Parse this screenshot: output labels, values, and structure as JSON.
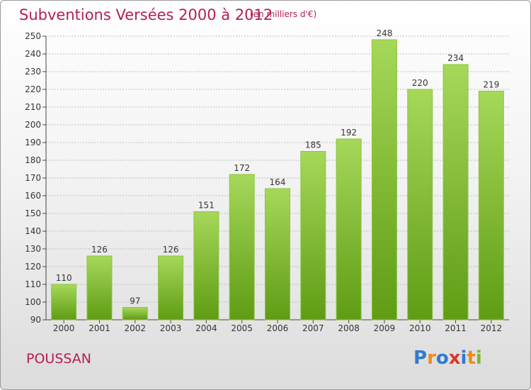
{
  "title": "Subventions Versées 2000 à 2012",
  "unit_note": "(en milliers d'€)",
  "town": "POUSSAN",
  "logo": {
    "text": "Proxiti",
    "letters": [
      {
        "ch": "P",
        "color": "#2e7bd1"
      },
      {
        "ch": "r",
        "color": "#f28a1c"
      },
      {
        "ch": "o",
        "color": "#2e7bd1"
      },
      {
        "ch": "x",
        "color": "#d8392b"
      },
      {
        "ch": "i",
        "color": "#2e7bd1"
      },
      {
        "ch": "t",
        "color": "#f28a1c"
      },
      {
        "ch": "i",
        "color": "#7cb82f"
      }
    ]
  },
  "colors": {
    "bar_light": "#a6d85a",
    "bar_dark": "#5f9c14",
    "bar_edge": "#8cc63f",
    "text_accent": "#b5204d",
    "grid": "#bdbdbd"
  },
  "chart_data": {
    "type": "bar",
    "categories": [
      "2000",
      "2001",
      "2002",
      "2003",
      "2004",
      "2005",
      "2006",
      "2007",
      "2008",
      "2009",
      "2010",
      "2011",
      "2012"
    ],
    "values": [
      110,
      126,
      97,
      126,
      151,
      172,
      164,
      185,
      192,
      248,
      220,
      234,
      219
    ],
    "ylim": [
      90,
      250
    ],
    "yticks": [
      90,
      100,
      110,
      120,
      130,
      140,
      150,
      160,
      170,
      180,
      190,
      200,
      210,
      220,
      230,
      240,
      250
    ],
    "grid": true,
    "title": "Subventions Versées 2000 à 2012",
    "xlabel": "",
    "ylabel": ""
  }
}
